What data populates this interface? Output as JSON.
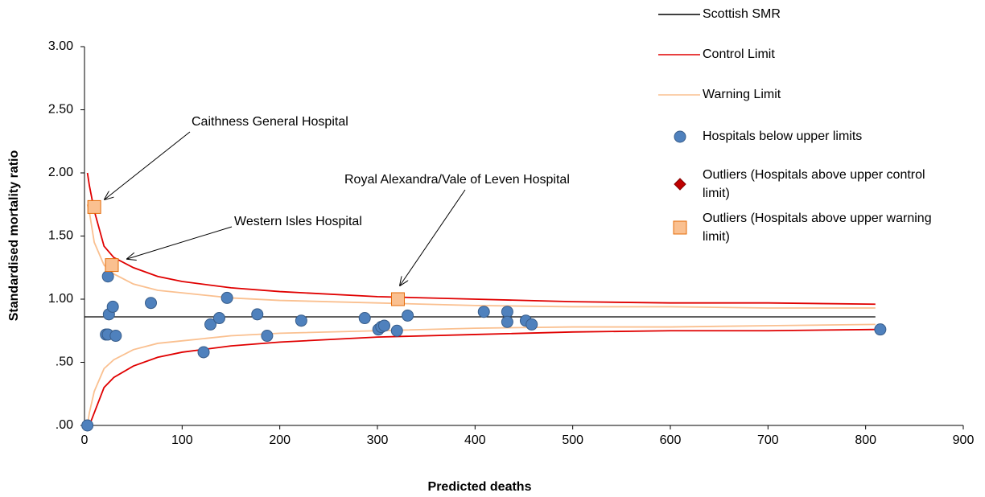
{
  "chart_data": {
    "type": "scatter",
    "xlabel": "Predicted deaths",
    "ylabel": "Standardised mortality ratio",
    "xlim": [
      0,
      900
    ],
    "ylim": [
      0,
      3
    ],
    "xticks": [
      0,
      100,
      200,
      300,
      400,
      500,
      600,
      700,
      800,
      900
    ],
    "yticks": [
      {
        "value": 0,
        "label": ".00"
      },
      {
        "value": 0.5,
        "label": ".50"
      },
      {
        "value": 1,
        "label": "1.00"
      },
      {
        "value": 1.5,
        "label": "1.50"
      },
      {
        "value": 2,
        "label": "2.00"
      },
      {
        "value": 2.5,
        "label": "2.50"
      },
      {
        "value": 3,
        "label": "3.00"
      }
    ],
    "grid": false,
    "series": [
      {
        "name": "Scottish SMR",
        "kind": "line",
        "color": "#000000",
        "x": [
          0,
          810
        ],
        "values": [
          0.86,
          0.86
        ]
      },
      {
        "name": "Control Limit",
        "kind": "line",
        "color": "#e00000",
        "x": [
          3,
          5,
          10,
          20,
          30,
          50,
          75,
          100,
          150,
          200,
          300,
          400,
          500,
          600,
          700,
          810
        ],
        "values": [
          2.0,
          1.9,
          1.7,
          1.42,
          1.33,
          1.25,
          1.18,
          1.14,
          1.09,
          1.06,
          1.02,
          1.0,
          0.98,
          0.97,
          0.97,
          0.96
        ],
        "lower": [
          0.0,
          0.0,
          0.1,
          0.3,
          0.38,
          0.47,
          0.54,
          0.58,
          0.63,
          0.66,
          0.7,
          0.72,
          0.74,
          0.75,
          0.75,
          0.76
        ]
      },
      {
        "name": "Warning Limit",
        "kind": "line",
        "color": "#fac090",
        "x": [
          3,
          5,
          10,
          20,
          30,
          50,
          75,
          100,
          150,
          200,
          300,
          400,
          500,
          600,
          700,
          810
        ],
        "values": [
          1.75,
          1.69,
          1.45,
          1.27,
          1.2,
          1.12,
          1.07,
          1.05,
          1.01,
          0.99,
          0.97,
          0.95,
          0.94,
          0.94,
          0.93,
          0.93
        ],
        "lower": [
          0.0,
          0.1,
          0.27,
          0.45,
          0.52,
          0.6,
          0.65,
          0.67,
          0.71,
          0.73,
          0.75,
          0.77,
          0.78,
          0.78,
          0.79,
          0.8
        ]
      },
      {
        "name": "Hospitals below upper limits",
        "kind": "points",
        "marker": "circle",
        "color": "#4f81bd",
        "x": [
          3,
          22,
          24,
          25,
          29,
          32,
          24,
          68,
          122,
          129,
          138,
          146,
          177,
          187,
          222,
          287,
          301,
          304,
          307,
          320,
          331,
          409,
          433,
          433,
          452,
          458,
          815
        ],
        "values": [
          0.0,
          0.72,
          0.72,
          0.88,
          0.94,
          0.71,
          1.18,
          0.97,
          0.58,
          0.8,
          0.85,
          1.01,
          0.88,
          0.71,
          0.83,
          0.85,
          0.76,
          0.78,
          0.79,
          0.75,
          0.87,
          0.9,
          0.9,
          0.82,
          0.83,
          0.8,
          0.76
        ]
      },
      {
        "name": "Outliers (Hospitals above upper control limit)",
        "kind": "points",
        "marker": "diamond",
        "color": "#c00000",
        "x": [],
        "values": []
      },
      {
        "name": "Outliers (Hospitals above upper warning limit)",
        "kind": "points",
        "marker": "square",
        "color": "#fac090",
        "x": [
          10,
          28,
          321
        ],
        "values": [
          1.73,
          1.27,
          1.0
        ]
      }
    ],
    "annotations": [
      "Caithness General Hospital",
      "Western Isles Hospital",
      "Royal Alexandra/Vale of Leven Hospital"
    ]
  }
}
